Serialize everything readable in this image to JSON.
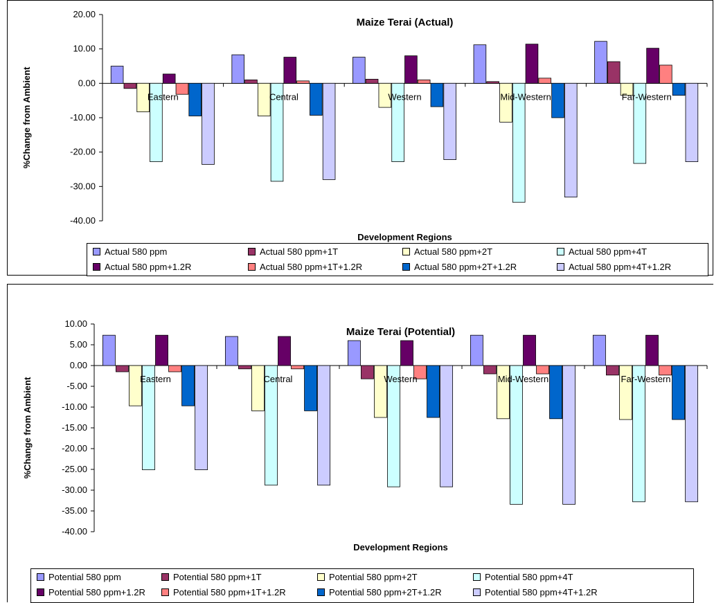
{
  "chart_data": [
    {
      "type": "bar",
      "title": "Maize Terai (Actual)",
      "xlabel": "Development Regions",
      "ylabel": "%Change from Ambient",
      "ylim": [
        -40,
        20
      ],
      "yticks": [
        "20.00",
        "10.00",
        "0.00",
        "-10.00",
        "-20.00",
        "-30.00",
        "-40.00"
      ],
      "ytick_values": [
        20,
        10,
        0,
        -10,
        -20,
        -30,
        -40
      ],
      "categories": [
        "Eastern",
        "Central",
        "Western",
        "Mid-Western",
        "Far-Western"
      ],
      "legend_position": "bottom",
      "grid": false,
      "series": [
        {
          "name": "Actual 580 ppm",
          "color": "#9999FF",
          "values": [
            5.0,
            8.3,
            7.6,
            11.2,
            12.2
          ]
        },
        {
          "name": "Actual 580 ppm+1T",
          "color": "#993366",
          "values": [
            -1.5,
            1.0,
            1.2,
            0.5,
            6.3
          ]
        },
        {
          "name": "Actual 580 ppm+2T",
          "color": "#FFFFCC",
          "values": [
            -8.3,
            -9.5,
            -7.0,
            -11.3,
            -3.5
          ]
        },
        {
          "name": "Actual 580 ppm+4T",
          "color": "#CCFFFF",
          "values": [
            -22.8,
            -28.5,
            -22.8,
            -34.6,
            -23.3
          ]
        },
        {
          "name": "Actual 580 ppm+1.2R",
          "color": "#660066",
          "values": [
            2.7,
            7.6,
            8.0,
            11.4,
            10.2
          ]
        },
        {
          "name": "Actual 580 ppm+1T+1.2R",
          "color": "#FF8080",
          "values": [
            -3.2,
            0.7,
            1.0,
            1.5,
            5.3
          ]
        },
        {
          "name": "Actual 580 ppm+2T+1.2R",
          "color": "#0066CC",
          "values": [
            -9.5,
            -9.3,
            -6.8,
            -10.0,
            -3.5
          ]
        },
        {
          "name": "Actual 580 ppm+4T+1.2R",
          "color": "#CCCCFF",
          "values": [
            -23.6,
            -28.0,
            -22.2,
            -33.1,
            -22.8
          ]
        }
      ]
    },
    {
      "type": "bar",
      "title": "Maize Terai (Potential)",
      "xlabel": "Development Regions",
      "ylabel": "%Change from Ambient",
      "ylim": [
        -40,
        10
      ],
      "yticks": [
        "10.00",
        "5.00",
        "0.00",
        "-5.00",
        "-10.00",
        "-15.00",
        "-20.00",
        "-25.00",
        "-30.00",
        "-35.00",
        "-40.00"
      ],
      "ytick_values": [
        10,
        5,
        0,
        -5,
        -10,
        -15,
        -20,
        -25,
        -30,
        -35,
        -40
      ],
      "categories": [
        "Eastern",
        "Central",
        "Western",
        "Mid-Western",
        "Far-Western"
      ],
      "legend_position": "bottom",
      "grid": false,
      "series": [
        {
          "name": "Potential 580 ppm",
          "color": "#9999FF",
          "values": [
            7.3,
            7.0,
            6.0,
            7.3,
            7.3
          ]
        },
        {
          "name": "Potential 580 ppm+1T",
          "color": "#993366",
          "values": [
            -1.5,
            -0.8,
            -3.2,
            -2.0,
            -2.3
          ]
        },
        {
          "name": "Potential 580 ppm+2T",
          "color": "#FFFFCC",
          "values": [
            -9.7,
            -10.9,
            -12.5,
            -12.8,
            -13.0
          ]
        },
        {
          "name": "Potential 580 ppm+4T",
          "color": "#CCFFFF",
          "values": [
            -25.1,
            -28.8,
            -29.2,
            -33.4,
            -32.8
          ]
        },
        {
          "name": "Potential 580 ppm+1.2R",
          "color": "#660066",
          "values": [
            7.3,
            7.0,
            6.0,
            7.3,
            7.3
          ]
        },
        {
          "name": "Potential 580 ppm+1T+1.2R",
          "color": "#FF8080",
          "values": [
            -1.5,
            -0.8,
            -3.2,
            -2.0,
            -2.3
          ]
        },
        {
          "name": "Potential 580 ppm+2T+1.2R",
          "color": "#0066CC",
          "values": [
            -9.7,
            -10.9,
            -12.5,
            -12.8,
            -13.0
          ]
        },
        {
          "name": "Potential 580 ppm+4T+1.2R",
          "color": "#CCCCFF",
          "values": [
            -25.1,
            -28.8,
            -29.2,
            -33.4,
            -32.8
          ]
        }
      ]
    }
  ]
}
